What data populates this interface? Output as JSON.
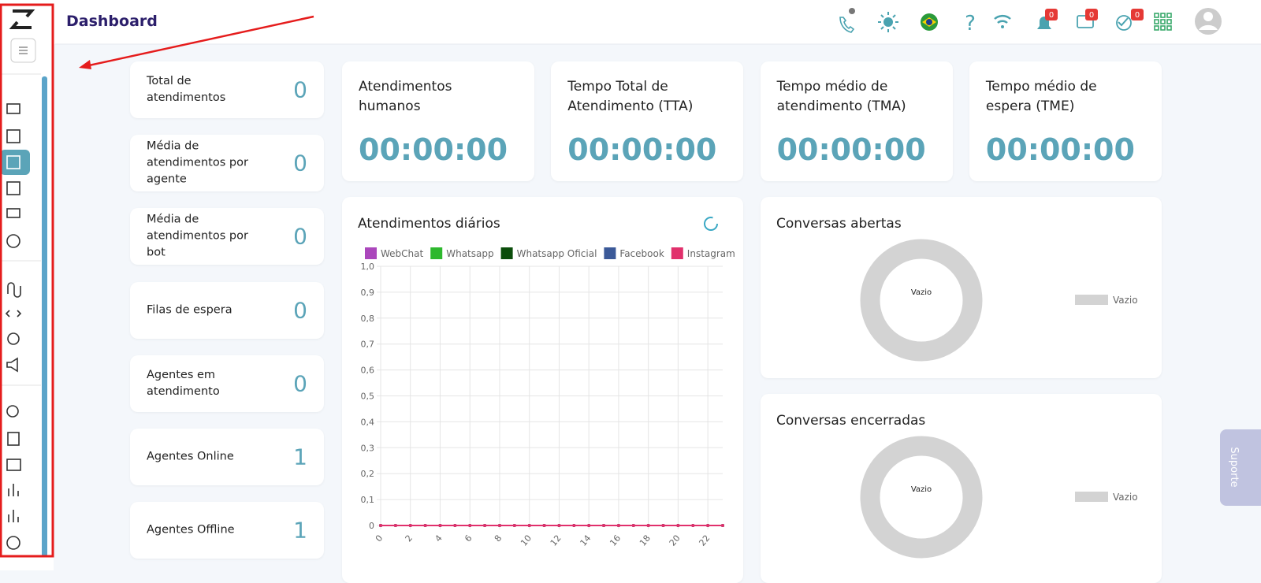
{
  "header": {
    "title": "Dashboard",
    "help": "?",
    "badges": [
      "0",
      "0",
      "0"
    ]
  },
  "stats": [
    {
      "label": "Total de atendimentos",
      "value": 0
    },
    {
      "label": "Média de atendimentos por agente",
      "value": 0
    },
    {
      "label": "Média de atendimentos por bot",
      "value": 0
    },
    {
      "label": "Filas de espera",
      "value": 0
    },
    {
      "label": "Agentes em atendimento",
      "value": 0
    },
    {
      "label": "Agentes Online",
      "value": 1
    },
    {
      "label": "Agentes Offline",
      "value": 1
    }
  ],
  "time_cards": [
    {
      "label": "Atendimentos humanos",
      "value": "00:00:00"
    },
    {
      "label": "Tempo Total de Atendimento (TTA)",
      "value": "00:00:00"
    },
    {
      "label": "Tempo médio de atendimento (TMA)",
      "value": "00:00:00"
    },
    {
      "label": "Tempo médio de espera (TME)",
      "value": "00:00:00"
    }
  ],
  "chart_data": {
    "type": "line",
    "title": "Atendimentos diários",
    "x": [
      0,
      1,
      2,
      3,
      4,
      5,
      6,
      7,
      8,
      9,
      10,
      11,
      12,
      13,
      14,
      15,
      16,
      17,
      18,
      19,
      20,
      21,
      22,
      23
    ],
    "series": [
      {
        "name": "WebChat",
        "color": "#ab47bc",
        "values": [
          0,
          0,
          0,
          0,
          0,
          0,
          0,
          0,
          0,
          0,
          0,
          0,
          0,
          0,
          0,
          0,
          0,
          0,
          0,
          0,
          0,
          0,
          0,
          0
        ]
      },
      {
        "name": "Whatsapp",
        "color": "#2eb82e",
        "values": [
          0,
          0,
          0,
          0,
          0,
          0,
          0,
          0,
          0,
          0,
          0,
          0,
          0,
          0,
          0,
          0,
          0,
          0,
          0,
          0,
          0,
          0,
          0,
          0
        ]
      },
      {
        "name": "Whatsapp Oficial",
        "color": "#0b4d0b",
        "values": [
          0,
          0,
          0,
          0,
          0,
          0,
          0,
          0,
          0,
          0,
          0,
          0,
          0,
          0,
          0,
          0,
          0,
          0,
          0,
          0,
          0,
          0,
          0,
          0
        ]
      },
      {
        "name": "Facebook",
        "color": "#3b5998",
        "values": [
          0,
          0,
          0,
          0,
          0,
          0,
          0,
          0,
          0,
          0,
          0,
          0,
          0,
          0,
          0,
          0,
          0,
          0,
          0,
          0,
          0,
          0,
          0,
          0
        ]
      },
      {
        "name": "Instagram",
        "color": "#e1306c",
        "values": [
          0,
          0,
          0,
          0,
          0,
          0,
          0,
          0,
          0,
          0,
          0,
          0,
          0,
          0,
          0,
          0,
          0,
          0,
          0,
          0,
          0,
          0,
          0,
          0
        ]
      }
    ],
    "xlim": [
      0,
      23
    ],
    "xticks": [
      0,
      2,
      4,
      6,
      8,
      10,
      12,
      14,
      16,
      18,
      20,
      22
    ],
    "ylim": [
      0,
      1
    ],
    "yticks": [
      0,
      {
        "value": 0.1,
        "label": "0,1"
      },
      {
        "value": 0.2,
        "label": "0,2"
      },
      {
        "value": 0.3,
        "label": "0,3"
      },
      {
        "value": 0.4,
        "label": "0,4"
      },
      {
        "value": 0.5,
        "label": "0,5"
      },
      {
        "value": 0.6,
        "label": "0,6"
      },
      {
        "value": 0.7,
        "label": "0,7"
      },
      {
        "value": 0.8,
        "label": "0,8"
      },
      {
        "value": 0.9,
        "label": "0,9"
      },
      {
        "value": 1,
        "label": "1,0"
      }
    ],
    "grid": true,
    "legend": "top"
  },
  "donuts": [
    {
      "title": "Conversas abertas",
      "center": "Vazio",
      "legend": "Vazio"
    },
    {
      "title": "Conversas encerradas",
      "center": "Vazio",
      "legend": "Vazio"
    }
  ],
  "support_tab": "Suporte"
}
